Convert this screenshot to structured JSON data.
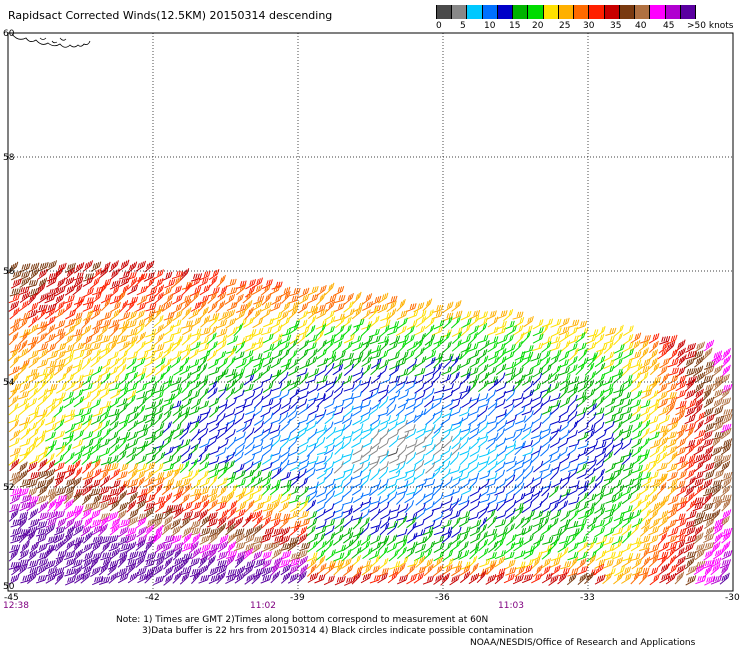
{
  "title": "Rapidsact Corrected Winds(12.5KM) 20150314 descending",
  "scale": {
    "colors": [
      "#4a4a4a",
      "#888888",
      "#00c8ff",
      "#0070ff",
      "#0000c8",
      "#00b400",
      "#00dc00",
      "#ffe000",
      "#ffb000",
      "#ff6a00",
      "#ff2000",
      "#c80000",
      "#7a3a10",
      "#b07040",
      "#ff00ff",
      "#b000d0",
      "#5a00a0"
    ],
    "labels": [
      {
        "text": "0",
        "offset": 6
      },
      {
        "text": "5",
        "offset": 30
      },
      {
        "text": "10",
        "offset": 54
      },
      {
        "text": "15",
        "offset": 79
      },
      {
        "text": "20",
        "offset": 102
      },
      {
        "text": "25",
        "offset": 129
      },
      {
        "text": "30",
        "offset": 153
      },
      {
        "text": "35",
        "offset": 180
      },
      {
        "text": "40",
        "offset": 205
      },
      {
        "text": "45",
        "offset": 233
      },
      {
        "text": ">50 knots",
        "offset": 257
      }
    ]
  },
  "map": {
    "lat_labels": [
      "60",
      "58",
      "56",
      "54",
      "52",
      "50"
    ],
    "lon_labels": [
      "-45",
      "-42",
      "-39",
      "-36",
      "-33",
      "-30"
    ],
    "time_labels": [
      "12:38",
      "11:02",
      "11:03"
    ]
  },
  "notes": {
    "line1": "Note: 1) Times are GMT 2)Times along bottom correspond to measurement at 60N",
    "line2": "3)Data buffer is 22 hrs from 20150314 4) Black circles indicate possible contamination"
  },
  "credit": "NOAA/NESDIS/Office of Research and Applications"
}
